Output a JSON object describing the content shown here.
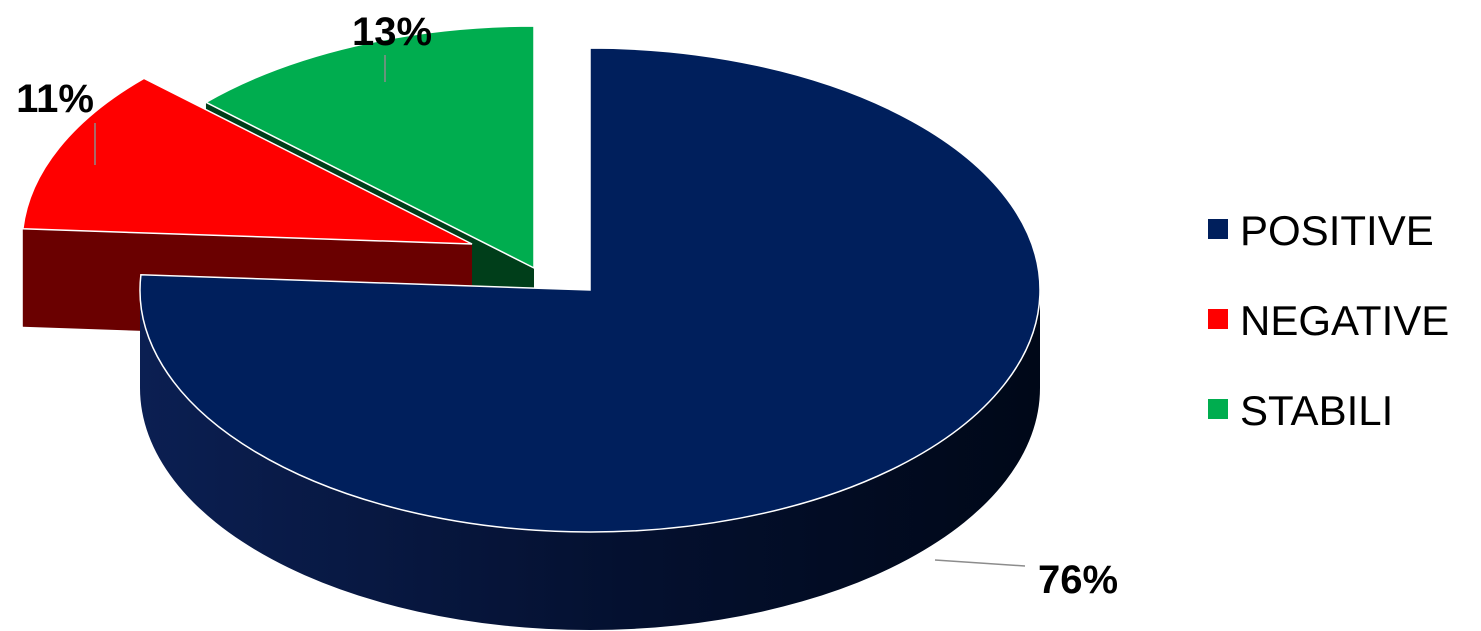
{
  "chart_data": {
    "type": "pie",
    "title": "",
    "variant": "3d-exploded",
    "legend_position": "right",
    "start_angle_deg": -90,
    "direction": "counterclockwise",
    "slices": [
      {
        "label": "POSITIVE",
        "value": 76,
        "display": "76%",
        "color": "#001F5C",
        "side_color": "#000E30",
        "key": "positive"
      },
      {
        "label": "STABILI",
        "value": 13,
        "display": "13%",
        "color": "#00AD4F",
        "side_color": "#003E1A",
        "key": "stabili"
      },
      {
        "label": "NEGATIVE",
        "value": 11,
        "display": "11%",
        "color": "#FF0000",
        "side_color": "#6A0000",
        "key": "negative"
      }
    ],
    "legend_order": [
      "POSITIVE",
      "NEGATIVE",
      "STABILI"
    ]
  }
}
